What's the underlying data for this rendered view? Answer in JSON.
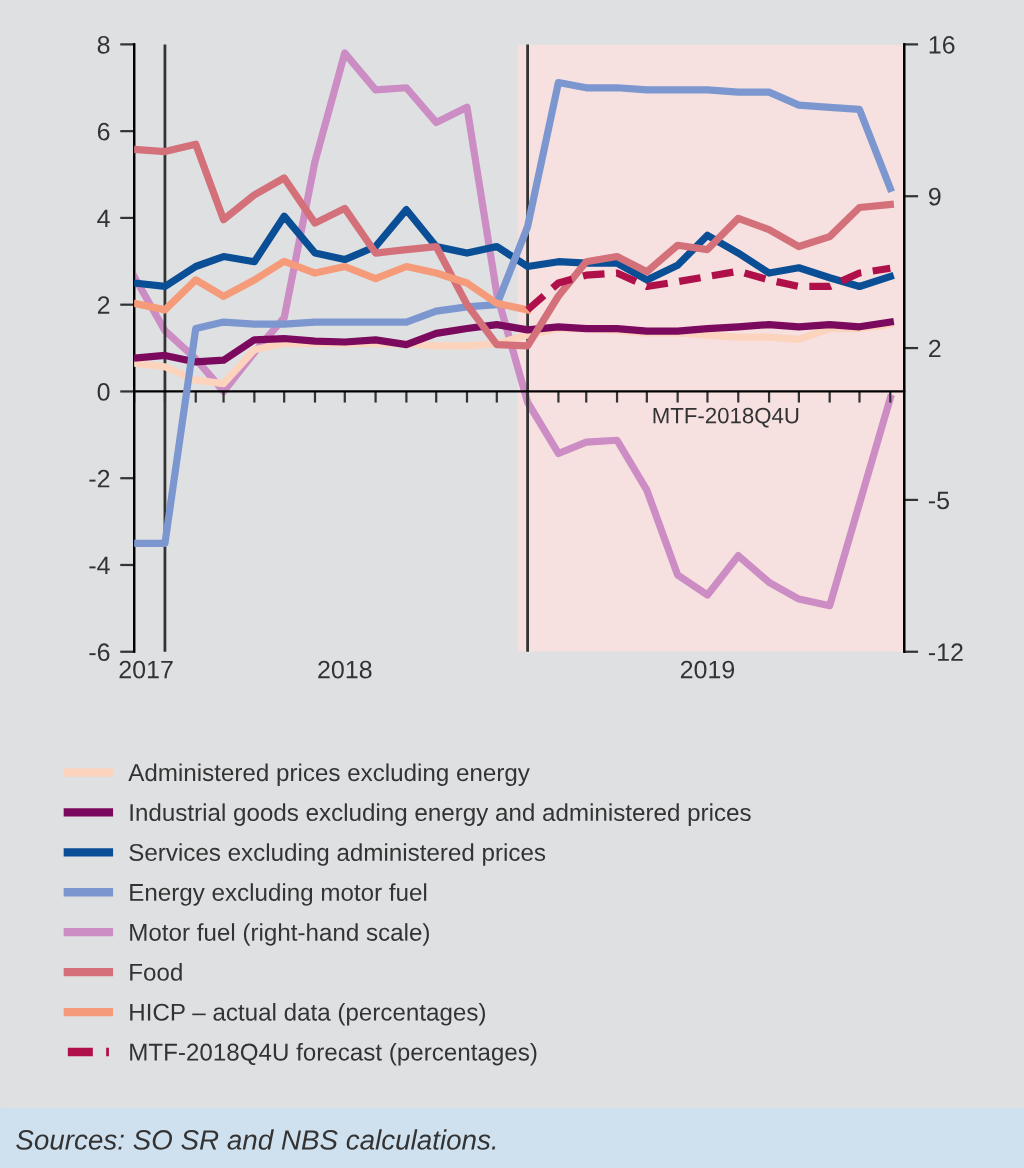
{
  "chart_data": {
    "type": "line",
    "x": [
      "2017-12",
      "2018-01",
      "2018-02",
      "2018-03",
      "2018-04",
      "2018-05",
      "2018-06",
      "2018-07",
      "2018-08",
      "2018-09",
      "2018-10",
      "2018-11",
      "2018-12",
      "2019-01",
      "2019-02",
      "2019-03",
      "2019-04",
      "2019-05",
      "2019-06",
      "2019-07",
      "2019-08",
      "2019-09",
      "2019-10",
      "2019-11",
      "2019-12",
      "2020-01"
    ],
    "series": [
      {
        "name": "Administered prices excluding energy",
        "color": "#fcd3bd",
        "values": [
          0.65,
          0.57,
          0.26,
          0.18,
          0.96,
          1.11,
          1.1,
          1.1,
          1.1,
          1.1,
          1.05,
          1.05,
          1.1,
          1.3,
          1.45,
          1.45,
          1.4,
          1.35,
          1.35,
          1.3,
          1.25,
          1.25,
          1.2,
          1.45,
          1.45,
          1.55
        ]
      },
      {
        "name": "Industrial goods excluding energy and administered prices",
        "color": "#7b0a5e",
        "values": [
          0.77,
          0.83,
          0.68,
          0.72,
          1.19,
          1.22,
          1.16,
          1.14,
          1.19,
          1.08,
          1.34,
          1.45,
          1.54,
          1.42,
          1.49,
          1.45,
          1.45,
          1.39,
          1.39,
          1.45,
          1.49,
          1.54,
          1.49,
          1.54,
          1.49,
          1.6
        ]
      },
      {
        "name": "Services excluding administered prices",
        "color": "#0a4f96",
        "values": [
          2.5,
          2.42,
          2.88,
          3.11,
          2.99,
          4.04,
          3.19,
          3.04,
          3.34,
          4.19,
          3.34,
          3.19,
          3.34,
          2.88,
          2.99,
          2.96,
          2.96,
          2.57,
          2.91,
          3.6,
          3.19,
          2.73,
          2.85,
          2.62,
          2.42,
          2.65
        ]
      },
      {
        "name": "Energy excluding motor fuel",
        "color": "#7c97cf",
        "values": [
          -3.5,
          -3.5,
          1.45,
          1.6,
          1.55,
          1.55,
          1.6,
          1.6,
          1.6,
          1.6,
          1.85,
          1.95,
          2.0,
          3.8,
          7.12,
          7.0,
          7.0,
          6.95,
          6.95,
          6.95,
          6.9,
          6.9,
          6.6,
          6.55,
          6.5,
          4.68
        ]
      },
      {
        "name": "Motor fuel (right-hand scale)",
        "color": "#cc8cc4",
        "axis": "y2",
        "values": [
          5.3,
          2.8,
          1.5,
          0.0,
          1.8,
          3.4,
          10.6,
          15.6,
          13.9,
          14.0,
          12.4,
          13.1,
          4.5,
          -0.5,
          -2.86,
          -2.34,
          -2.25,
          -4.55,
          -8.46,
          -9.38,
          -7.57,
          -8.8,
          -9.57,
          -9.88,
          -5.17,
          -0.31
        ]
      },
      {
        "name": "Food",
        "color": "#d3707a",
        "values": [
          5.58,
          5.53,
          5.7,
          3.96,
          4.53,
          4.92,
          3.88,
          4.22,
          3.19,
          3.27,
          3.34,
          2.0,
          1.08,
          1.05,
          2.2,
          2.99,
          3.11,
          2.76,
          3.37,
          3.27,
          3.99,
          3.73,
          3.34,
          3.57,
          4.24,
          4.31
        ]
      },
      {
        "name": "HICP – actual data (percentages)",
        "color": "#f59b7a",
        "values": [
          2.03,
          1.88,
          2.57,
          2.19,
          2.57,
          3.0,
          2.73,
          2.88,
          2.6,
          2.88,
          2.73,
          2.5,
          2.03,
          1.88,
          null,
          null,
          null,
          null,
          null,
          null,
          null,
          null,
          null,
          null,
          null,
          null
        ]
      },
      {
        "name": "MTF-2018Q4U forecast (percentages)",
        "color": "#b0104a",
        "line_style": "dashed",
        "values": [
          null,
          null,
          null,
          null,
          null,
          null,
          null,
          null,
          null,
          null,
          null,
          null,
          null,
          1.88,
          2.5,
          2.68,
          2.73,
          2.42,
          2.53,
          2.65,
          2.77,
          2.57,
          2.42,
          2.42,
          2.73,
          2.84
        ]
      }
    ],
    "xlim": [
      "2017-12",
      "2020-01-15"
    ],
    "xticks": [
      {
        "value": "2017-12",
        "label": null
      },
      {
        "value": "2018-01",
        "label": null
      },
      {
        "value": "2018-02",
        "label": null
      },
      {
        "value": "2018-03",
        "label": null
      },
      {
        "value": "2018-04",
        "label": null
      },
      {
        "value": "2018-05",
        "label": null
      },
      {
        "value": "2018-06",
        "label": null
      },
      {
        "value": "2018-07",
        "label": null
      },
      {
        "value": "2018-08",
        "label": null
      },
      {
        "value": "2018-09",
        "label": null
      },
      {
        "value": "2018-10",
        "label": null
      },
      {
        "value": "2018-11",
        "label": null
      },
      {
        "value": "2018-12",
        "label": null
      },
      {
        "value": "2019-01",
        "label": null
      },
      {
        "value": "2019-02",
        "label": null
      },
      {
        "value": "2019-03",
        "label": null
      },
      {
        "value": "2019-04",
        "label": null
      },
      {
        "value": "2019-05",
        "label": null
      },
      {
        "value": "2019-06",
        "label": null
      },
      {
        "value": "2019-07",
        "label": null
      },
      {
        "value": "2019-08",
        "label": null
      },
      {
        "value": "2019-09",
        "label": null
      },
      {
        "value": "2019-10",
        "label": null
      },
      {
        "value": "2019-11",
        "label": null
      },
      {
        "value": "2019-12",
        "label": null
      },
      {
        "value": "2020-01",
        "label": null
      },
      {
        "value": "2017-12-13",
        "label": "2017"
      },
      {
        "value": "2018-07-01",
        "label": "2018"
      },
      {
        "value": "2019-07-01",
        "label": "2019"
      }
    ],
    "ylim": [
      -6,
      8
    ],
    "yticks": [
      -6,
      -4,
      -2,
      0,
      2,
      4,
      6,
      8
    ],
    "y2lim": [
      -12,
      16
    ],
    "y2ticks": [
      -12,
      -5,
      2,
      9,
      16
    ],
    "ref_lines": [
      {
        "axis": "x",
        "value": "2018-01",
        "color": "#333333"
      },
      {
        "axis": "x",
        "value": "2019-01",
        "color": "#333333"
      }
    ],
    "bands": [
      {
        "axis": "x",
        "from": "2018-12-22",
        "to": "2020-01-15",
        "label": "MTF-2018Q4U",
        "color": "#f6e0e0"
      }
    ],
    "legend": "bottom",
    "grid": false,
    "marker": "none",
    "annotations": [
      "Sources: SO SR and NBS calculations."
    ]
  }
}
